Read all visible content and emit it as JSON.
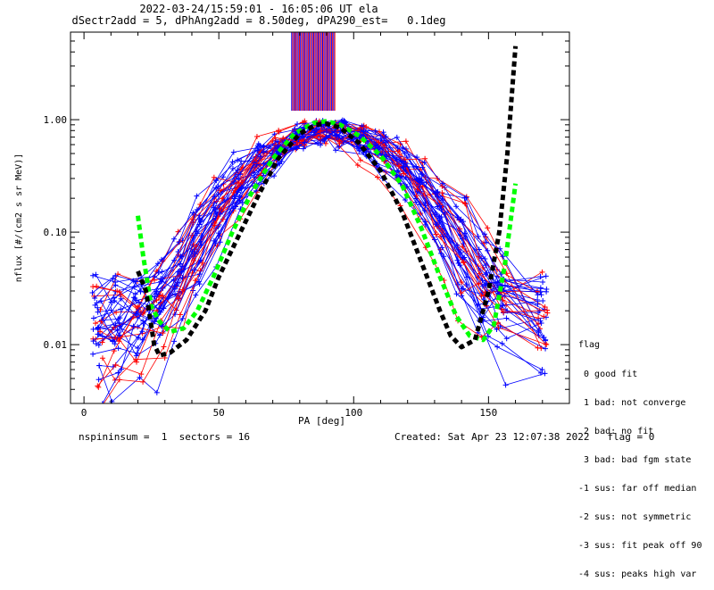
{
  "header": {
    "line1": "2022-03-24/15:59:01 - 16:05:06 UT ela",
    "line2": "dSectr2add = 5, dPhAng2add = 8.50deg, dPA290_est=   0.1deg"
  },
  "footer": {
    "left": "nspininsum =  1  sectors = 16",
    "right": "Created: Sat Apr 23 12:07:38 2022   flag = 0"
  },
  "legend": {
    "title": "flag",
    "items": [
      " 0 good fit",
      " 1 bad: not converge",
      " 2 bad: no fit",
      " 3 bad: bad fgm state",
      "-1 sus: far off median",
      "-2 sus: not symmetric",
      "-3 sus: fit peak off 90",
      "-4 sus: peaks high var"
    ]
  },
  "colors": {
    "blue": "#0000ff",
    "red": "#ff0000",
    "green": "#00ff00",
    "black": "#000000"
  },
  "chart_data": {
    "type": "line",
    "title": "2022-03-24/15:59:01 - 16:05:06 UT ela",
    "xlabel": "PA [deg]",
    "ylabel": "nflux [#/(cm2 s sr MeV)]",
    "xlim": [
      -5,
      180
    ],
    "ylim": [
      0.003,
      6.0
    ],
    "yscale": "log",
    "xticks": [
      0,
      50,
      100,
      150
    ],
    "yticks": [
      0.01,
      0.1,
      1.0
    ],
    "ytick_labels": [
      "0.01",
      "0.10",
      "1.00"
    ],
    "vertical_markers": {
      "x_range": [
        77,
        93
      ],
      "count": 40,
      "colors": [
        "#0000ff",
        "#ff0000"
      ],
      "y_from": 1.2,
      "y_to": 6.0
    },
    "series": [
      {
        "color": "#00ff00",
        "style": "dotted-thick",
        "points": [
          [
            20,
            0.14
          ],
          [
            22,
            0.06
          ],
          [
            25,
            0.022
          ],
          [
            28,
            0.016
          ],
          [
            32,
            0.013
          ],
          [
            37,
            0.014
          ],
          [
            42,
            0.02
          ],
          [
            48,
            0.04
          ],
          [
            55,
            0.1
          ],
          [
            62,
            0.22
          ],
          [
            70,
            0.45
          ],
          [
            78,
            0.75
          ],
          [
            85,
            0.93
          ],
          [
            90,
            0.97
          ],
          [
            95,
            0.9
          ],
          [
            102,
            0.72
          ],
          [
            110,
            0.48
          ],
          [
            118,
            0.26
          ],
          [
            125,
            0.11
          ],
          [
            132,
            0.04
          ],
          [
            138,
            0.018
          ],
          [
            143,
            0.012
          ],
          [
            148,
            0.011
          ],
          [
            152,
            0.015
          ],
          [
            156,
            0.05
          ],
          [
            160,
            0.27
          ]
        ]
      },
      {
        "color": "#000000",
        "style": "dotted-thick",
        "points": [
          [
            20,
            0.045
          ],
          [
            23,
            0.03
          ],
          [
            26,
            0.01
          ],
          [
            28,
            0.008
          ],
          [
            32,
            0.0085
          ],
          [
            38,
            0.011
          ],
          [
            45,
            0.02
          ],
          [
            50,
            0.04
          ],
          [
            58,
            0.1
          ],
          [
            65,
            0.22
          ],
          [
            72,
            0.45
          ],
          [
            80,
            0.75
          ],
          [
            86,
            0.9
          ],
          [
            90,
            0.92
          ],
          [
            95,
            0.85
          ],
          [
            102,
            0.62
          ],
          [
            110,
            0.35
          ],
          [
            118,
            0.15
          ],
          [
            125,
            0.055
          ],
          [
            132,
            0.02
          ],
          [
            136,
            0.012
          ],
          [
            140,
            0.0095
          ],
          [
            145,
            0.011
          ],
          [
            150,
            0.03
          ],
          [
            154,
            0.1
          ],
          [
            157,
            0.5
          ],
          [
            160,
            4.5
          ]
        ]
      }
    ]
  }
}
